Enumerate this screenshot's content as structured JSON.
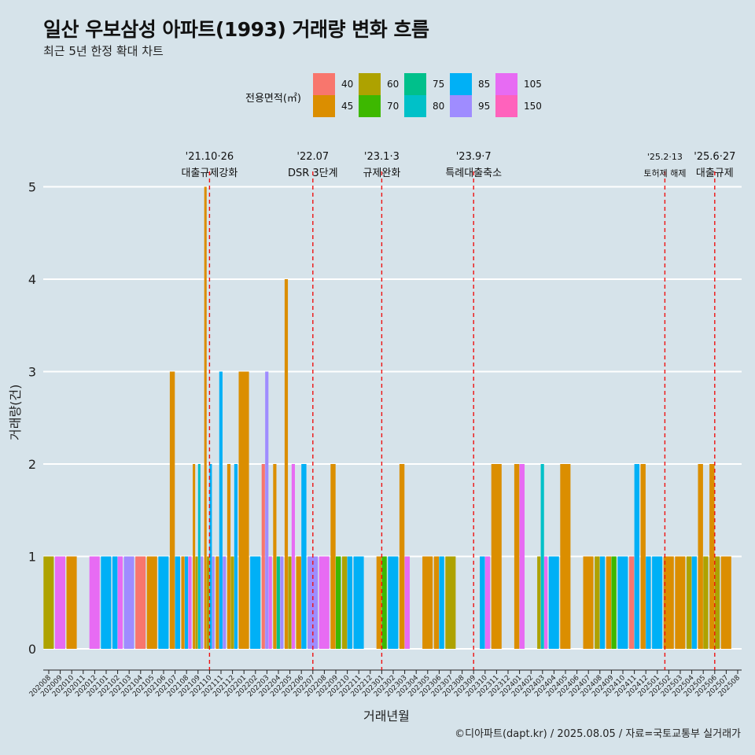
{
  "header": {
    "title": "일산 우보삼성 아파트(1993) 거래량 변화 흐름",
    "subtitle": "최근 5년 한정 확대 차트"
  },
  "legend": {
    "title": "전용면적(㎡)",
    "items": [
      {
        "label": "40",
        "color": "#f8766d"
      },
      {
        "label": "45",
        "color": "#db8e00"
      },
      {
        "label": "60",
        "color": "#aea200"
      },
      {
        "label": "70",
        "color": "#3db800"
      },
      {
        "label": "75",
        "color": "#00c08b"
      },
      {
        "label": "80",
        "color": "#00c1c8"
      },
      {
        "label": "85",
        "color": "#00b0f6"
      },
      {
        "label": "95",
        "color": "#9f8cff"
      },
      {
        "label": "105",
        "color": "#e76bf3"
      },
      {
        "label": "150",
        "color": "#ff62bc"
      }
    ]
  },
  "axes": {
    "xlabel": "거래년월",
    "ylabel": "거래량(건)"
  },
  "caption": "©디아파트(dapt.kr) / 2025.08.05 / 자료=국토교통부 실거래가",
  "chart_data": {
    "type": "bar",
    "stacking": "dodge",
    "title": "일산 우보삼성 아파트(1993) 거래량 변화 흐름",
    "xlabel": "거래년월",
    "ylabel": "거래량(건)",
    "ylim": [
      0,
      5
    ],
    "yticks": [
      0,
      1,
      2,
      3,
      4,
      5
    ],
    "categories": [
      "202008",
      "202009",
      "202010",
      "202011",
      "202012",
      "202101",
      "202102",
      "202103",
      "202104",
      "202105",
      "202106",
      "202107",
      "202108",
      "202109",
      "202110",
      "202111",
      "202112",
      "202201",
      "202202",
      "202203",
      "202204",
      "202205",
      "202206",
      "202207",
      "202208",
      "202209",
      "202210",
      "202211",
      "202212",
      "202301",
      "202302",
      "202303",
      "202304",
      "202305",
      "202306",
      "202307",
      "202308",
      "202309",
      "202310",
      "202311",
      "202312",
      "202401",
      "202402",
      "202403",
      "202404",
      "202405",
      "202406",
      "202407",
      "202408",
      "202409",
      "202410",
      "202411",
      "202412",
      "202501",
      "202502",
      "202503",
      "202504",
      "202505",
      "202506",
      "202507",
      "202508"
    ],
    "bars": [
      {
        "month": "202008",
        "area": "60",
        "value": 1
      },
      {
        "month": "202009",
        "area": "105",
        "value": 1
      },
      {
        "month": "202010",
        "area": "45",
        "value": 1
      },
      {
        "month": "202012",
        "area": "105",
        "value": 1
      },
      {
        "month": "202101",
        "area": "85",
        "value": 1
      },
      {
        "month": "202102",
        "area": "85",
        "value": 1
      },
      {
        "month": "202102",
        "area": "105",
        "value": 1
      },
      {
        "month": "202103",
        "area": "95",
        "value": 1
      },
      {
        "month": "202104",
        "area": "40",
        "value": 1
      },
      {
        "month": "202105",
        "area": "45",
        "value": 1
      },
      {
        "month": "202106",
        "area": "85",
        "value": 1
      },
      {
        "month": "202107",
        "area": "45",
        "value": 3
      },
      {
        "month": "202107",
        "area": "85",
        "value": 1
      },
      {
        "month": "202108",
        "area": "45",
        "value": 1
      },
      {
        "month": "202108",
        "area": "85",
        "value": 1
      },
      {
        "month": "202108",
        "area": "105",
        "value": 1
      },
      {
        "month": "202109",
        "area": "45",
        "value": 2
      },
      {
        "month": "202109",
        "area": "60",
        "value": 1
      },
      {
        "month": "202109",
        "area": "80",
        "value": 2
      },
      {
        "month": "202109",
        "area": "95",
        "value": 1
      },
      {
        "month": "202110",
        "area": "45",
        "value": 5
      },
      {
        "month": "202110",
        "area": "60",
        "value": 1
      },
      {
        "month": "202110",
        "area": "85",
        "value": 2
      },
      {
        "month": "202110",
        "area": "95",
        "value": 1
      },
      {
        "month": "202111",
        "area": "45",
        "value": 1
      },
      {
        "month": "202111",
        "area": "85",
        "value": 3
      },
      {
        "month": "202111",
        "area": "95",
        "value": 1
      },
      {
        "month": "202112",
        "area": "45",
        "value": 2
      },
      {
        "month": "202112",
        "area": "60",
        "value": 1
      },
      {
        "month": "202112",
        "area": "85",
        "value": 2
      },
      {
        "month": "202201",
        "area": "45",
        "value": 3
      },
      {
        "month": "202202",
        "area": "85",
        "value": 1
      },
      {
        "month": "202203",
        "area": "105",
        "value": 1
      },
      {
        "month": "202203",
        "area": "95",
        "value": 3
      },
      {
        "month": "202203",
        "area": "40",
        "value": 2
      },
      {
        "month": "202204",
        "area": "45",
        "value": 2
      },
      {
        "month": "202204",
        "area": "75",
        "value": 1
      },
      {
        "month": "202204",
        "area": "95",
        "value": 1
      },
      {
        "month": "202205",
        "area": "45",
        "value": 4
      },
      {
        "month": "202205",
        "area": "60",
        "value": 1
      },
      {
        "month": "202205",
        "area": "105",
        "value": 2
      },
      {
        "month": "202206",
        "area": "45",
        "value": 1
      },
      {
        "month": "202206",
        "area": "85",
        "value": 2
      },
      {
        "month": "202207",
        "area": "95",
        "value": 1
      },
      {
        "month": "202208",
        "area": "105",
        "value": 1
      },
      {
        "month": "202209",
        "area": "45",
        "value": 2
      },
      {
        "month": "202209",
        "area": "70",
        "value": 1
      },
      {
        "month": "202210",
        "area": "60",
        "value": 1
      },
      {
        "month": "202210",
        "area": "85",
        "value": 1
      },
      {
        "month": "202211",
        "area": "85",
        "value": 1
      },
      {
        "month": "202301",
        "area": "45",
        "value": 1
      },
      {
        "month": "202301",
        "area": "70",
        "value": 1
      },
      {
        "month": "202302",
        "area": "85",
        "value": 1
      },
      {
        "month": "202303",
        "area": "45",
        "value": 2
      },
      {
        "month": "202303",
        "area": "105",
        "value": 1
      },
      {
        "month": "202305",
        "area": "45",
        "value": 1
      },
      {
        "month": "202306",
        "area": "45",
        "value": 1
      },
      {
        "month": "202306",
        "area": "85",
        "value": 1
      },
      {
        "month": "202307",
        "area": "60",
        "value": 1
      },
      {
        "month": "202310",
        "area": "85",
        "value": 1
      },
      {
        "month": "202310",
        "area": "105",
        "value": 1
      },
      {
        "month": "202311",
        "area": "45",
        "value": 2
      },
      {
        "month": "202401",
        "area": "45",
        "value": 2
      },
      {
        "month": "202401",
        "area": "105",
        "value": 2
      },
      {
        "month": "202403",
        "area": "60",
        "value": 1
      },
      {
        "month": "202403",
        "area": "80",
        "value": 2
      },
      {
        "month": "202403",
        "area": "105",
        "value": 1
      },
      {
        "month": "202404",
        "area": "85",
        "value": 1
      },
      {
        "month": "202405",
        "area": "45",
        "value": 2
      },
      {
        "month": "202407",
        "area": "45",
        "value": 1
      },
      {
        "month": "202408",
        "area": "60",
        "value": 1
      },
      {
        "month": "202408",
        "area": "85",
        "value": 1
      },
      {
        "month": "202409",
        "area": "45",
        "value": 1
      },
      {
        "month": "202409",
        "area": "70",
        "value": 1
      },
      {
        "month": "202410",
        "area": "85",
        "value": 1
      },
      {
        "month": "202411",
        "area": "40",
        "value": 1
      },
      {
        "month": "202411",
        "area": "85",
        "value": 2
      },
      {
        "month": "202412",
        "area": "45",
        "value": 2
      },
      {
        "month": "202412",
        "area": "85",
        "value": 1
      },
      {
        "month": "202501",
        "area": "85",
        "value": 1
      },
      {
        "month": "202502",
        "area": "45",
        "value": 1
      },
      {
        "month": "202503",
        "area": "45",
        "value": 1
      },
      {
        "month": "202504",
        "area": "60",
        "value": 1
      },
      {
        "month": "202504",
        "area": "85",
        "value": 1
      },
      {
        "month": "202505",
        "area": "45",
        "value": 2
      },
      {
        "month": "202505",
        "area": "60",
        "value": 1
      },
      {
        "month": "202506",
        "area": "45",
        "value": 2
      },
      {
        "month": "202506",
        "area": "60",
        "value": 1
      },
      {
        "month": "202507",
        "area": "45",
        "value": 1
      }
    ],
    "events": [
      {
        "month": "202110",
        "date": "'21.10·26",
        "label": "대출규제강화"
      },
      {
        "month": "202207",
        "date": "'22.07",
        "label": "DSR 3단계"
      },
      {
        "month": "202301",
        "date": "'23.1·3",
        "label": "규제완화"
      },
      {
        "month": "202309",
        "date": "'23.9·7",
        "label": "특례대출축소"
      },
      {
        "month": "202502",
        "date": "'25.2·13",
        "label": "토허제 해제",
        "small": true
      },
      {
        "month": "202506",
        "date": "'25.6·27",
        "label": "대출규제"
      }
    ]
  }
}
